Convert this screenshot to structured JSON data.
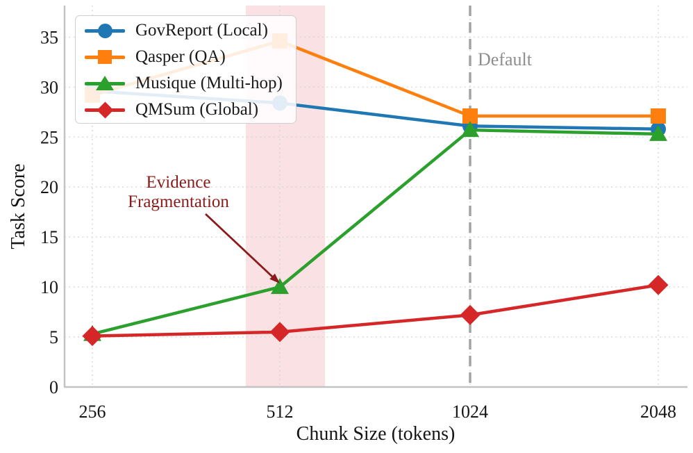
{
  "chart_data": {
    "type": "line",
    "title": "",
    "xlabel": "Chunk Size (tokens)",
    "ylabel": "Task Score",
    "x_categories": [
      "256",
      "512",
      "1024",
      "2048"
    ],
    "y_ticks": [
      0,
      5,
      10,
      15,
      20,
      25,
      30,
      35
    ],
    "ylim": [
      0,
      38.2
    ],
    "grid": "dotted",
    "legend_position": "upper-left",
    "series": [
      {
        "name": "GovReport (Local)",
        "marker": "circle",
        "color": "#1f77b4",
        "values": [
          29.6,
          28.4,
          26.1,
          25.8
        ]
      },
      {
        "name": "Qasper (QA)",
        "marker": "square",
        "color": "#ff7f0e",
        "values": [
          29.2,
          34.6,
          27.1,
          27.1
        ]
      },
      {
        "name": "Musique (Multi-hop)",
        "marker": "triangle",
        "color": "#2ca02c",
        "values": [
          5.3,
          10.0,
          25.7,
          25.3
        ]
      },
      {
        "name": "QMSum (Global)",
        "marker": "diamond",
        "color": "#d62728",
        "values": [
          5.1,
          5.5,
          7.2,
          10.2
        ]
      }
    ],
    "annotations": {
      "default_line": {
        "label": "Default",
        "at_x": "1024",
        "style": "dashed",
        "color": "#a3a3a3",
        "label_color": "#8e8e8e"
      },
      "highlight_band": {
        "at_x": "512",
        "color": "#dc3545",
        "opacity": 0.15
      },
      "evidence": {
        "line1": "Evidence",
        "line2": "Fragmentation",
        "color": "#8b1a1a",
        "arrow_to": {
          "x": "512",
          "series": "Musique (Multi-hop)",
          "value": 10.0
        }
      }
    }
  }
}
